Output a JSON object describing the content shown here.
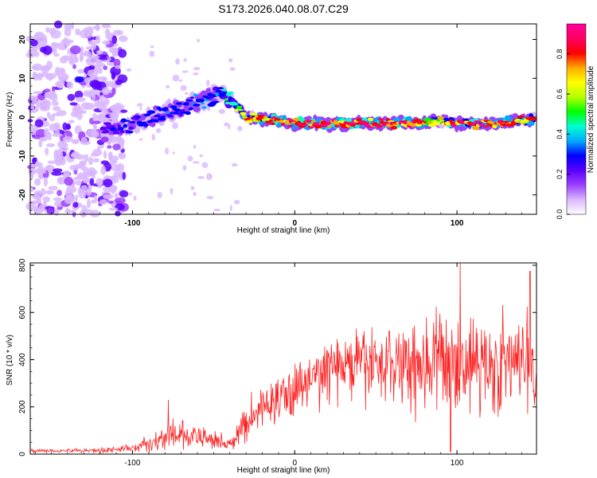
{
  "title": "S173.2026.040.08.07.C29",
  "chart_data": [
    {
      "type": "heatmap",
      "title": "",
      "xlabel": "Height of straight line (km)",
      "ylabel": "Frequency (Hz)",
      "xlim": [
        -163,
        149
      ],
      "ylim": [
        -25,
        24
      ],
      "xticks": [
        -100,
        0,
        100
      ],
      "yticks": [
        -20,
        -10,
        0,
        10,
        20
      ],
      "colorbar": {
        "label": "Normalized spectral amplitude",
        "range": [
          0,
          0.95
        ],
        "ticks": [
          "0.0",
          "0.2",
          "0.4",
          "0.6",
          "0.8"
        ],
        "tick_values": [
          0.0,
          0.2,
          0.4,
          0.6,
          0.8
        ],
        "colors": [
          "#ffffff",
          "#d9b8ff",
          "#9b40ff",
          "#5a00ff",
          "#0000ff",
          "#00aaff",
          "#00ffd0",
          "#00ff00",
          "#b4ff00",
          "#ffff00",
          "#ffaa00",
          "#ff0000",
          "#ff0066",
          "#ff0099"
        ]
      },
      "ridge": {
        "description": "dominant spectral line (frequency in Hz vs height in km)",
        "x": [
          -118,
          -100,
          -80,
          -60,
          -45,
          -38,
          -30,
          -10,
          0,
          20,
          40,
          60,
          80,
          86,
          100,
          120,
          140,
          148
        ],
        "y": [
          -4,
          -2,
          1,
          4,
          6,
          4,
          0,
          -1,
          -1.5,
          -1.8,
          -1.5,
          -1.6,
          -1.5,
          -1,
          -1.5,
          -1.8,
          -0.8,
          -0.5
        ],
        "amplitude": [
          0.25,
          0.28,
          0.3,
          0.32,
          0.38,
          0.55,
          0.7,
          0.85,
          0.88,
          0.9,
          0.85,
          0.88,
          0.78,
          0.6,
          0.82,
          0.85,
          0.8,
          0.75
        ]
      },
      "scatter_noise": {
        "description": "faint noise blobs at low heights (x < -110 km) spanning all frequencies",
        "xrange": [
          -163,
          -105
        ],
        "yrange": [
          -25,
          24
        ]
      }
    },
    {
      "type": "line",
      "title": "",
      "xlabel": "Height of straight line (km)",
      "ylabel": "SNR (10 * v/v)",
      "xlim": [
        -163,
        149
      ],
      "ylim": [
        0,
        810
      ],
      "xticks": [
        -100,
        0,
        100
      ],
      "yticks": [
        0,
        200,
        400,
        600,
        800
      ],
      "color": "#ff2020",
      "envelope": {
        "description": "noisy SNR trace; mean and spread in data units",
        "x": [
          -163,
          -140,
          -120,
          -100,
          -85,
          -75,
          -60,
          -45,
          -38,
          -32,
          -20,
          0,
          20,
          40,
          60,
          80,
          100,
          120,
          140,
          149
        ],
        "mean": [
          15,
          15,
          16,
          25,
          55,
          80,
          70,
          55,
          40,
          120,
          200,
          270,
          360,
          380,
          385,
          390,
          390,
          380,
          380,
          390
        ],
        "spread": [
          8,
          8,
          9,
          15,
          40,
          60,
          45,
          35,
          25,
          70,
          80,
          100,
          110,
          130,
          160,
          200,
          190,
          180,
          190,
          150
        ],
        "peaks": [
          {
            "x": -78,
            "y": 230
          },
          {
            "x": 102,
            "y": 810
          },
          {
            "x": 145,
            "y": 775
          },
          {
            "x": 96,
            "y": 10
          }
        ]
      }
    }
  ]
}
